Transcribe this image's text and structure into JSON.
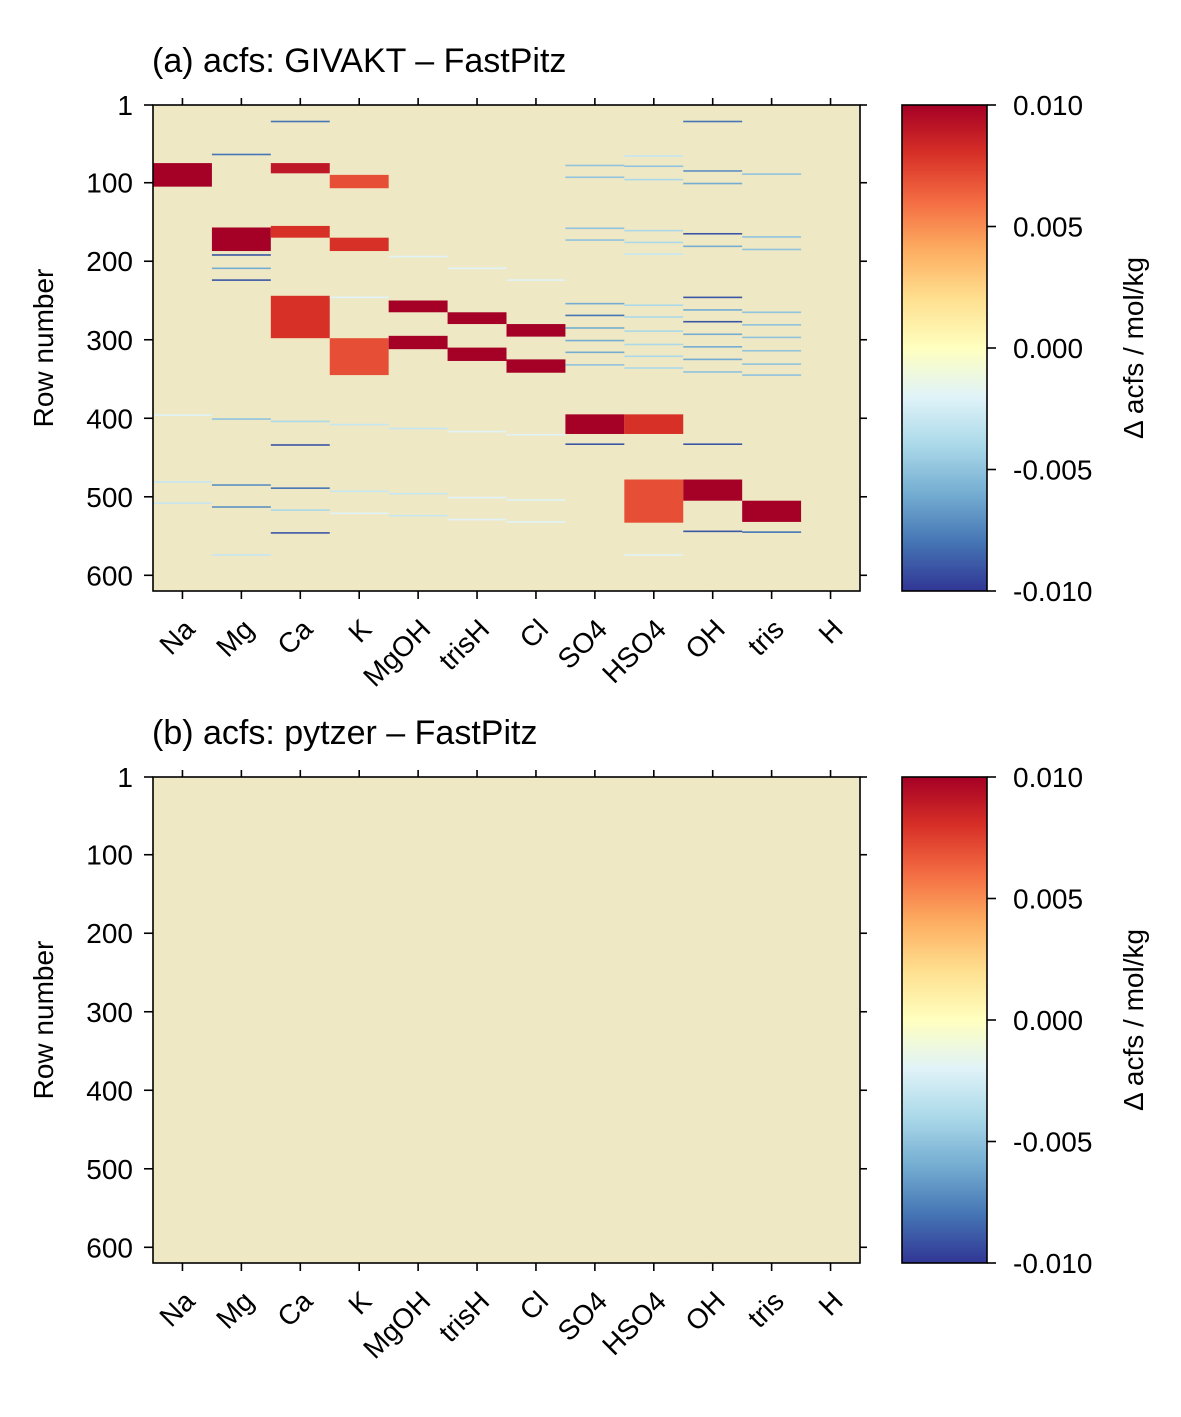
{
  "chart_data": [
    {
      "type": "heatmap",
      "title": "(a) acfs: GIVAKT – FastPitz",
      "xlabel": "",
      "ylabel": "Row number",
      "columns": [
        "Na",
        "Mg",
        "Ca",
        "K",
        "MgOH",
        "trisH",
        "Cl",
        "SO4",
        "HSO4",
        "OH",
        "tris",
        "H"
      ],
      "y_ticks": [
        "1",
        "100",
        "200",
        "300",
        "400",
        "500",
        "600"
      ],
      "y_tick_values": [
        1,
        100,
        200,
        300,
        400,
        500,
        600
      ],
      "ylim": [
        620,
        1
      ],
      "background_value": 0.0,
      "colorbar": {
        "label": "Δ acfs / mol/kg",
        "range": [
          -0.01,
          0.01
        ],
        "ticks": [
          "0.010",
          "0.005",
          "0.000",
          "-0.005",
          "-0.010"
        ],
        "tick_values": [
          0.01,
          0.005,
          0.0,
          -0.005,
          -0.01
        ]
      },
      "bands": [
        {
          "column": "Na",
          "row_start": 75,
          "row_end": 105,
          "value": 0.01
        },
        {
          "column": "Na",
          "row_start": 395,
          "row_end": 396,
          "value": -0.002
        },
        {
          "column": "Na",
          "row_start": 480,
          "row_end": 481,
          "value": -0.003
        },
        {
          "column": "Na",
          "row_start": 507,
          "row_end": 508,
          "value": -0.003
        },
        {
          "column": "Mg",
          "row_start": 63,
          "row_end": 65,
          "value": -0.008
        },
        {
          "column": "Mg",
          "row_start": 157,
          "row_end": 187,
          "value": 0.01
        },
        {
          "column": "Mg",
          "row_start": 191,
          "row_end": 193,
          "value": -0.009
        },
        {
          "column": "Mg",
          "row_start": 208,
          "row_end": 209,
          "value": -0.006
        },
        {
          "column": "Mg",
          "row_start": 223,
          "row_end": 225,
          "value": -0.009
        },
        {
          "column": "Mg",
          "row_start": 400,
          "row_end": 401,
          "value": -0.005
        },
        {
          "column": "Mg",
          "row_start": 484,
          "row_end": 486,
          "value": -0.007
        },
        {
          "column": "Mg",
          "row_start": 512,
          "row_end": 514,
          "value": -0.007
        },
        {
          "column": "Mg",
          "row_start": 573,
          "row_end": 574,
          "value": -0.003
        },
        {
          "column": "Ca",
          "row_start": 21,
          "row_end": 22,
          "value": -0.008
        },
        {
          "column": "Ca",
          "row_start": 75,
          "row_end": 88,
          "value": 0.009
        },
        {
          "column": "Ca",
          "row_start": 155,
          "row_end": 170,
          "value": 0.008
        },
        {
          "column": "Ca",
          "row_start": 244,
          "row_end": 298,
          "value": 0.008
        },
        {
          "column": "Ca",
          "row_start": 403,
          "row_end": 404,
          "value": -0.004
        },
        {
          "column": "Ca",
          "row_start": 433,
          "row_end": 435,
          "value": -0.009
        },
        {
          "column": "Ca",
          "row_start": 488,
          "row_end": 490,
          "value": -0.008
        },
        {
          "column": "Ca",
          "row_start": 516,
          "row_end": 517,
          "value": -0.004
        },
        {
          "column": "Ca",
          "row_start": 545,
          "row_end": 547,
          "value": -0.009
        },
        {
          "column": "K",
          "row_start": 90,
          "row_end": 107,
          "value": 0.007
        },
        {
          "column": "K",
          "row_start": 170,
          "row_end": 187,
          "value": 0.008
        },
        {
          "column": "K",
          "row_start": 245,
          "row_end": 246,
          "value": -0.002
        },
        {
          "column": "K",
          "row_start": 298,
          "row_end": 345,
          "value": 0.007
        },
        {
          "column": "K",
          "row_start": 407,
          "row_end": 408,
          "value": -0.003
        },
        {
          "column": "K",
          "row_start": 492,
          "row_end": 493,
          "value": -0.003
        },
        {
          "column": "K",
          "row_start": 520,
          "row_end": 521,
          "value": -0.002
        },
        {
          "column": "MgOH",
          "row_start": 193,
          "row_end": 194,
          "value": -0.002
        },
        {
          "column": "MgOH",
          "row_start": 250,
          "row_end": 265,
          "value": 0.01
        },
        {
          "column": "MgOH",
          "row_start": 295,
          "row_end": 312,
          "value": 0.01
        },
        {
          "column": "MgOH",
          "row_start": 412,
          "row_end": 413,
          "value": -0.003
        },
        {
          "column": "MgOH",
          "row_start": 495,
          "row_end": 496,
          "value": -0.003
        },
        {
          "column": "MgOH",
          "row_start": 523,
          "row_end": 524,
          "value": -0.003
        },
        {
          "column": "trisH",
          "row_start": 208,
          "row_end": 209,
          "value": -0.002
        },
        {
          "column": "trisH",
          "row_start": 265,
          "row_end": 280,
          "value": 0.01
        },
        {
          "column": "trisH",
          "row_start": 310,
          "row_end": 327,
          "value": 0.01
        },
        {
          "column": "trisH",
          "row_start": 416,
          "row_end": 417,
          "value": -0.002
        },
        {
          "column": "trisH",
          "row_start": 500,
          "row_end": 501,
          "value": -0.002
        },
        {
          "column": "trisH",
          "row_start": 528,
          "row_end": 529,
          "value": -0.002
        },
        {
          "column": "Cl",
          "row_start": 223,
          "row_end": 224,
          "value": -0.002
        },
        {
          "column": "Cl",
          "row_start": 280,
          "row_end": 296,
          "value": 0.01
        },
        {
          "column": "Cl",
          "row_start": 325,
          "row_end": 342,
          "value": 0.01
        },
        {
          "column": "Cl",
          "row_start": 420,
          "row_end": 421,
          "value": -0.002
        },
        {
          "column": "Cl",
          "row_start": 503,
          "row_end": 504,
          "value": -0.002
        },
        {
          "column": "Cl",
          "row_start": 531,
          "row_end": 532,
          "value": -0.002
        },
        {
          "column": "SO4",
          "row_start": 77,
          "row_end": 78,
          "value": -0.005
        },
        {
          "column": "SO4",
          "row_start": 92,
          "row_end": 93,
          "value": -0.005
        },
        {
          "column": "SO4",
          "row_start": 157,
          "row_end": 158,
          "value": -0.005
        },
        {
          "column": "SO4",
          "row_start": 172,
          "row_end": 173,
          "value": -0.005
        },
        {
          "column": "SO4",
          "row_start": 253,
          "row_end": 254,
          "value": -0.006
        },
        {
          "column": "SO4",
          "row_start": 268,
          "row_end": 269,
          "value": -0.008
        },
        {
          "column": "SO4",
          "row_start": 284,
          "row_end": 285,
          "value": -0.006
        },
        {
          "column": "SO4",
          "row_start": 300,
          "row_end": 301,
          "value": -0.006
        },
        {
          "column": "SO4",
          "row_start": 315,
          "row_end": 316,
          "value": -0.006
        },
        {
          "column": "SO4",
          "row_start": 331,
          "row_end": 332,
          "value": -0.005
        },
        {
          "column": "SO4",
          "row_start": 395,
          "row_end": 420,
          "value": 0.01
        },
        {
          "column": "SO4",
          "row_start": 432,
          "row_end": 434,
          "value": -0.009
        },
        {
          "column": "HSO4",
          "row_start": 65,
          "row_end": 66,
          "value": -0.003
        },
        {
          "column": "HSO4",
          "row_start": 78,
          "row_end": 79,
          "value": -0.005
        },
        {
          "column": "HSO4",
          "row_start": 95,
          "row_end": 96,
          "value": -0.004
        },
        {
          "column": "HSO4",
          "row_start": 160,
          "row_end": 161,
          "value": -0.004
        },
        {
          "column": "HSO4",
          "row_start": 175,
          "row_end": 176,
          "value": -0.004
        },
        {
          "column": "HSO4",
          "row_start": 190,
          "row_end": 191,
          "value": -0.003
        },
        {
          "column": "HSO4",
          "row_start": 255,
          "row_end": 256,
          "value": -0.004
        },
        {
          "column": "HSO4",
          "row_start": 270,
          "row_end": 271,
          "value": -0.004
        },
        {
          "column": "HSO4",
          "row_start": 288,
          "row_end": 289,
          "value": -0.004
        },
        {
          "column": "HSO4",
          "row_start": 305,
          "row_end": 306,
          "value": -0.004
        },
        {
          "column": "HSO4",
          "row_start": 320,
          "row_end": 321,
          "value": -0.004
        },
        {
          "column": "HSO4",
          "row_start": 335,
          "row_end": 336,
          "value": -0.004
        },
        {
          "column": "HSO4",
          "row_start": 395,
          "row_end": 420,
          "value": 0.008
        },
        {
          "column": "HSO4",
          "row_start": 478,
          "row_end": 533,
          "value": 0.007
        },
        {
          "column": "HSO4",
          "row_start": 573,
          "row_end": 574,
          "value": -0.002
        },
        {
          "column": "OH",
          "row_start": 21,
          "row_end": 22,
          "value": -0.008
        },
        {
          "column": "OH",
          "row_start": 84,
          "row_end": 85,
          "value": -0.007
        },
        {
          "column": "OH",
          "row_start": 100,
          "row_end": 101,
          "value": -0.006
        },
        {
          "column": "OH",
          "row_start": 164,
          "row_end": 166,
          "value": -0.009
        },
        {
          "column": "OH",
          "row_start": 180,
          "row_end": 181,
          "value": -0.006
        },
        {
          "column": "OH",
          "row_start": 245,
          "row_end": 247,
          "value": -0.009
        },
        {
          "column": "OH",
          "row_start": 261,
          "row_end": 262,
          "value": -0.006
        },
        {
          "column": "OH",
          "row_start": 276,
          "row_end": 278,
          "value": -0.009
        },
        {
          "column": "OH",
          "row_start": 292,
          "row_end": 293,
          "value": -0.006
        },
        {
          "column": "OH",
          "row_start": 308,
          "row_end": 309,
          "value": -0.006
        },
        {
          "column": "OH",
          "row_start": 324,
          "row_end": 325,
          "value": -0.006
        },
        {
          "column": "OH",
          "row_start": 340,
          "row_end": 341,
          "value": -0.005
        },
        {
          "column": "OH",
          "row_start": 432,
          "row_end": 434,
          "value": -0.009
        },
        {
          "column": "OH",
          "row_start": 478,
          "row_end": 505,
          "value": 0.01
        },
        {
          "column": "OH",
          "row_start": 543,
          "row_end": 545,
          "value": -0.009
        },
        {
          "column": "tris",
          "row_start": 88,
          "row_end": 89,
          "value": -0.005
        },
        {
          "column": "tris",
          "row_start": 168,
          "row_end": 169,
          "value": -0.005
        },
        {
          "column": "tris",
          "row_start": 184,
          "row_end": 185,
          "value": -0.005
        },
        {
          "column": "tris",
          "row_start": 264,
          "row_end": 265,
          "value": -0.005
        },
        {
          "column": "tris",
          "row_start": 280,
          "row_end": 281,
          "value": -0.005
        },
        {
          "column": "tris",
          "row_start": 296,
          "row_end": 297,
          "value": -0.005
        },
        {
          "column": "tris",
          "row_start": 313,
          "row_end": 314,
          "value": -0.005
        },
        {
          "column": "tris",
          "row_start": 330,
          "row_end": 331,
          "value": -0.005
        },
        {
          "column": "tris",
          "row_start": 344,
          "row_end": 345,
          "value": -0.005
        },
        {
          "column": "tris",
          "row_start": 505,
          "row_end": 532,
          "value": 0.01
        },
        {
          "column": "tris",
          "row_start": 544,
          "row_end": 546,
          "value": -0.008
        }
      ]
    },
    {
      "type": "heatmap",
      "title": "(b) acfs: pytzer – FastPitz",
      "xlabel": "",
      "ylabel": "Row number",
      "columns": [
        "Na",
        "Mg",
        "Ca",
        "K",
        "MgOH",
        "trisH",
        "Cl",
        "SO4",
        "HSO4",
        "OH",
        "tris",
        "H"
      ],
      "y_ticks": [
        "1",
        "100",
        "200",
        "300",
        "400",
        "500",
        "600"
      ],
      "y_tick_values": [
        1,
        100,
        200,
        300,
        400,
        500,
        600
      ],
      "ylim": [
        620,
        1
      ],
      "background_value": 0.0,
      "colorbar": {
        "label": "Δ acfs / mol/kg",
        "range": [
          -0.01,
          0.01
        ],
        "ticks": [
          "0.010",
          "0.005",
          "0.000",
          "-0.005",
          "-0.010"
        ],
        "tick_values": [
          0.01,
          0.005,
          0.0,
          -0.005,
          -0.01
        ]
      },
      "bands": []
    }
  ],
  "colors": {
    "background": "#efe8c4",
    "colormap": [
      "#313695",
      "#4575b4",
      "#74add1",
      "#abd9e9",
      "#e0f3f8",
      "#ffffbf",
      "#fee090",
      "#fdae61",
      "#f46d43",
      "#d73027",
      "#a50026"
    ]
  }
}
